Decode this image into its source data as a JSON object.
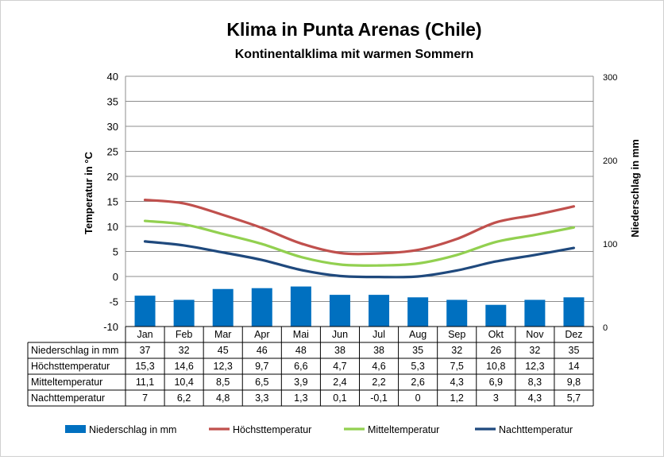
{
  "chart_data": {
    "type": "bar",
    "title": "Klima in Punta Arenas (Chile)",
    "subtitle": "Kontinentalklima mit warmen Sommern",
    "ylabel": "Temperatur in °C",
    "y2label": "Niederschlag in mm",
    "ylim": [
      -10,
      40
    ],
    "yticks": [
      -10,
      -5,
      0,
      5,
      10,
      15,
      20,
      25,
      30,
      35,
      40
    ],
    "y2lim": [
      0,
      300
    ],
    "y2ticks": [
      0,
      100,
      200,
      300
    ],
    "grid": true,
    "legend_position": "bottom",
    "categories": [
      "Jan",
      "Feb",
      "Mar",
      "Apr",
      "Mai",
      "Jun",
      "Jul",
      "Aug",
      "Sep",
      "Okt",
      "Nov",
      "Dez"
    ],
    "series": [
      {
        "name": "Niederschlag in mm",
        "type": "bar",
        "axis": "right",
        "color": "#0070C0",
        "values": [
          37,
          32,
          45,
          46,
          48,
          38,
          38,
          35,
          32,
          26,
          32,
          35
        ],
        "labels": [
          "37",
          "32",
          "45",
          "46",
          "48",
          "38",
          "38",
          "35",
          "32",
          "26",
          "32",
          "35"
        ]
      },
      {
        "name": "Höchsttemperatur",
        "type": "line",
        "axis": "left",
        "color": "#C0504D",
        "values": [
          15.3,
          14.6,
          12.3,
          9.7,
          6.6,
          4.7,
          4.6,
          5.3,
          7.5,
          10.8,
          12.3,
          14
        ],
        "labels": [
          "15,3",
          "14,6",
          "12,3",
          "9,7",
          "6,6",
          "4,7",
          "4,6",
          "5,3",
          "7,5",
          "10,8",
          "12,3",
          "14"
        ]
      },
      {
        "name": "Mitteltemperatur",
        "type": "line",
        "axis": "left",
        "color": "#92D050",
        "values": [
          11.1,
          10.4,
          8.5,
          6.5,
          3.9,
          2.4,
          2.2,
          2.6,
          4.3,
          6.9,
          8.3,
          9.8
        ],
        "labels": [
          "11,1",
          "10,4",
          "8,5",
          "6,5",
          "3,9",
          "2,4",
          "2,2",
          "2,6",
          "4,3",
          "6,9",
          "8,3",
          "9,8"
        ]
      },
      {
        "name": "Nachttemperatur",
        "type": "line",
        "axis": "left",
        "color": "#1F497D",
        "values": [
          7,
          6.2,
          4.8,
          3.3,
          1.3,
          0.1,
          -0.1,
          0,
          1.2,
          3,
          4.3,
          5.7
        ],
        "labels": [
          "7",
          "6,2",
          "4,8",
          "3,3",
          "1,3",
          "0,1",
          "-0,1",
          "0",
          "1,2",
          "3",
          "4,3",
          "5,7"
        ]
      }
    ]
  }
}
